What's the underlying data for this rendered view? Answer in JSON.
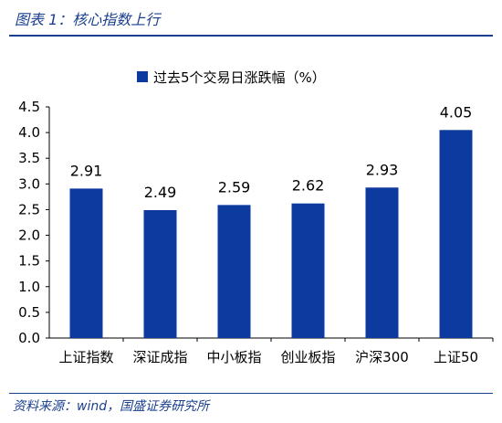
{
  "header": {
    "figure_title": "图表 1：核心指数上行"
  },
  "footer": {
    "source": "资料来源：wind，国盛证券研究所"
  },
  "colors": {
    "bar": "#0d3a9e",
    "accent": "#1a3f8f"
  },
  "chart_data": {
    "type": "bar",
    "categories": [
      "上证指数",
      "深证成指",
      "中小板指",
      "创业板指",
      "沪深300",
      "上证50"
    ],
    "series": [
      {
        "name": "过去5个交易日涨跌幅（%）",
        "values": [
          2.91,
          2.49,
          2.59,
          2.62,
          2.93,
          4.05
        ]
      }
    ],
    "value_labels": [
      "2.91",
      "2.49",
      "2.59",
      "2.62",
      "2.93",
      "4.05"
    ],
    "y_ticks": [
      "0.0",
      "0.5",
      "1.0",
      "1.5",
      "2.0",
      "2.5",
      "3.0",
      "3.5",
      "4.0",
      "4.5"
    ],
    "ylim": [
      0,
      4.5
    ],
    "grid": false,
    "legend_position": "top-center",
    "title": "",
    "xlabel": "",
    "ylabel": ""
  }
}
